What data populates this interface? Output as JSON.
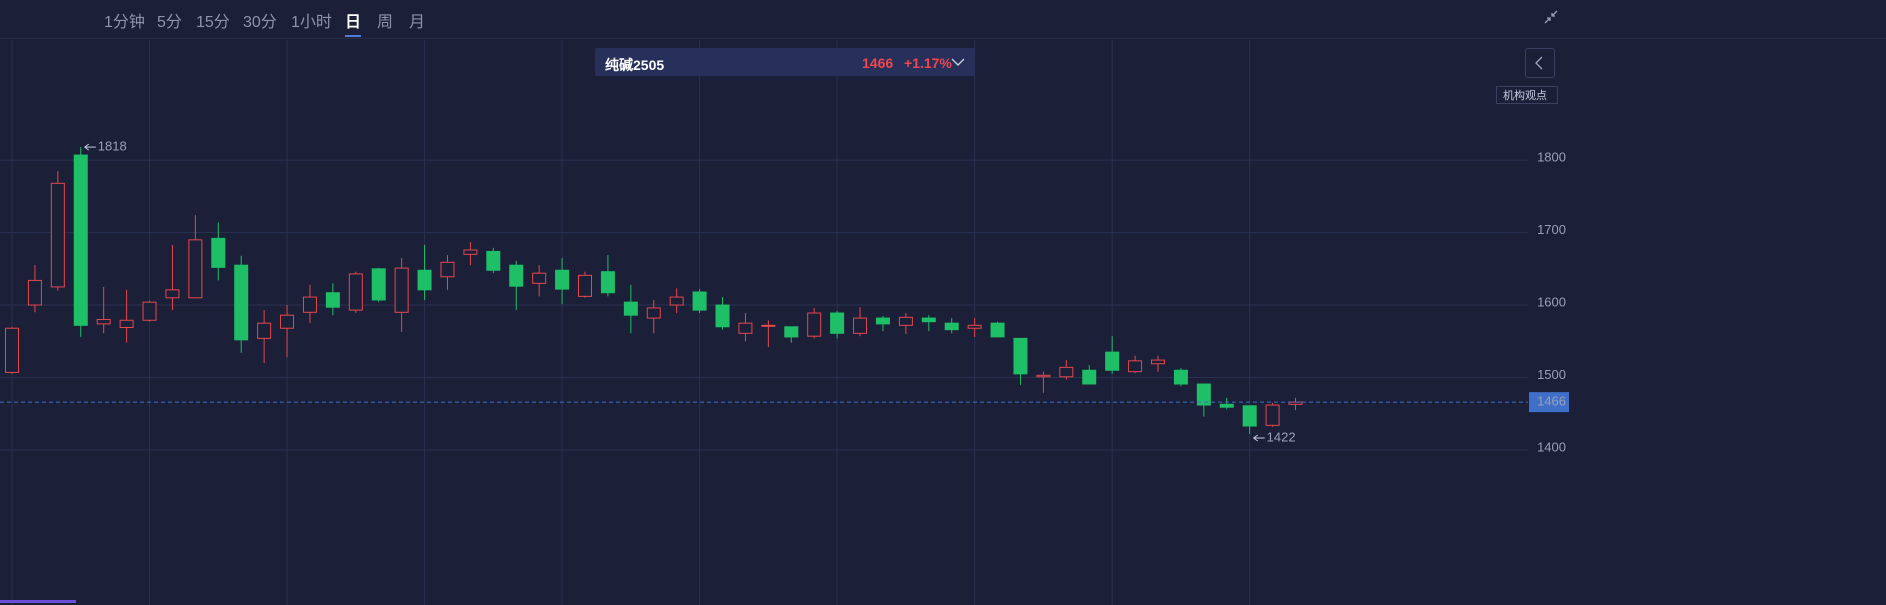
{
  "toolbar": {
    "tabs": [
      "1分钟",
      "5分",
      "15分",
      "30分",
      "1小时",
      "日",
      "周",
      "月"
    ]
  },
  "header": {
    "symbol": "纯碱2505",
    "price": "1466",
    "change": "+1.17%"
  },
  "side_button": {
    "label": "机构观点"
  },
  "chart_data": {
    "type": "candlestick",
    "up_color": "#e5484d",
    "down_color": "#1fbf67",
    "open": [
      1507,
      1600,
      1625,
      1807,
      1574,
      1569,
      1579,
      1610,
      1610,
      1692,
      1655,
      1554,
      1568,
      1590,
      1617,
      1593,
      1650,
      1590,
      1648,
      1639,
      1670,
      1674,
      1655,
      1630,
      1648,
      1612,
      1646,
      1604,
      1582,
      1600,
      1618,
      1600,
      1561,
      1571,
      1570,
      1557,
      1589,
      1561,
      1582,
      1572,
      1582,
      1575,
      1568,
      1575,
      1554,
      1501,
      1501,
      1510,
      1535,
      1508,
      1519,
      1510,
      1491,
      1463,
      1461,
      1434,
      1463
    ],
    "high": [
      1570,
      1655,
      1785,
      1818,
      1625,
      1621,
      1606,
      1683,
      1724,
      1714,
      1668,
      1593,
      1600,
      1628,
      1630,
      1646,
      1651,
      1665,
      1683,
      1669,
      1687,
      1679,
      1661,
      1655,
      1665,
      1646,
      1669,
      1628,
      1607,
      1623,
      1622,
      1611,
      1589,
      1579,
      1570,
      1596,
      1592,
      1597,
      1585,
      1589,
      1586,
      1582,
      1582,
      1577,
      1554,
      1508,
      1524,
      1517,
      1557,
      1530,
      1530,
      1513,
      1491,
      1472,
      1461,
      1465,
      1472
    ],
    "low": [
      1505,
      1590,
      1620,
      1556,
      1561,
      1548,
      1577,
      1593,
      1610,
      1634,
      1534,
      1520,
      1528,
      1575,
      1586,
      1589,
      1604,
      1563,
      1607,
      1621,
      1655,
      1644,
      1593,
      1612,
      1601,
      1610,
      1612,
      1561,
      1561,
      1589,
      1589,
      1566,
      1550,
      1542,
      1548,
      1554,
      1554,
      1557,
      1564,
      1560,
      1564,
      1561,
      1556,
      1556,
      1490,
      1479,
      1497,
      1491,
      1505,
      1506,
      1508,
      1488,
      1446,
      1456,
      1422,
      1432,
      1455
    ],
    "close": [
      1568,
      1634,
      1768,
      1572,
      1580,
      1579,
      1604,
      1621,
      1690,
      1652,
      1552,
      1575,
      1586,
      1611,
      1597,
      1643,
      1607,
      1651,
      1621,
      1659,
      1676,
      1648,
      1626,
      1644,
      1622,
      1641,
      1617,
      1586,
      1596,
      1611,
      1593,
      1570,
      1575,
      1572,
      1556,
      1589,
      1561,
      1582,
      1574,
      1583,
      1577,
      1566,
      1572,
      1556,
      1505,
      1503,
      1514,
      1491,
      1510,
      1523,
      1524,
      1491,
      1462,
      1459,
      1433,
      1462,
      1466
    ],
    "ylim": [
      1186,
      1883
    ],
    "yticks": [
      1400,
      1500,
      1600,
      1700,
      1800
    ],
    "grid": true,
    "max_marker": 1818,
    "min_marker": 1422,
    "last_price": 1466,
    "last_price_color": "#3f6fc9"
  }
}
